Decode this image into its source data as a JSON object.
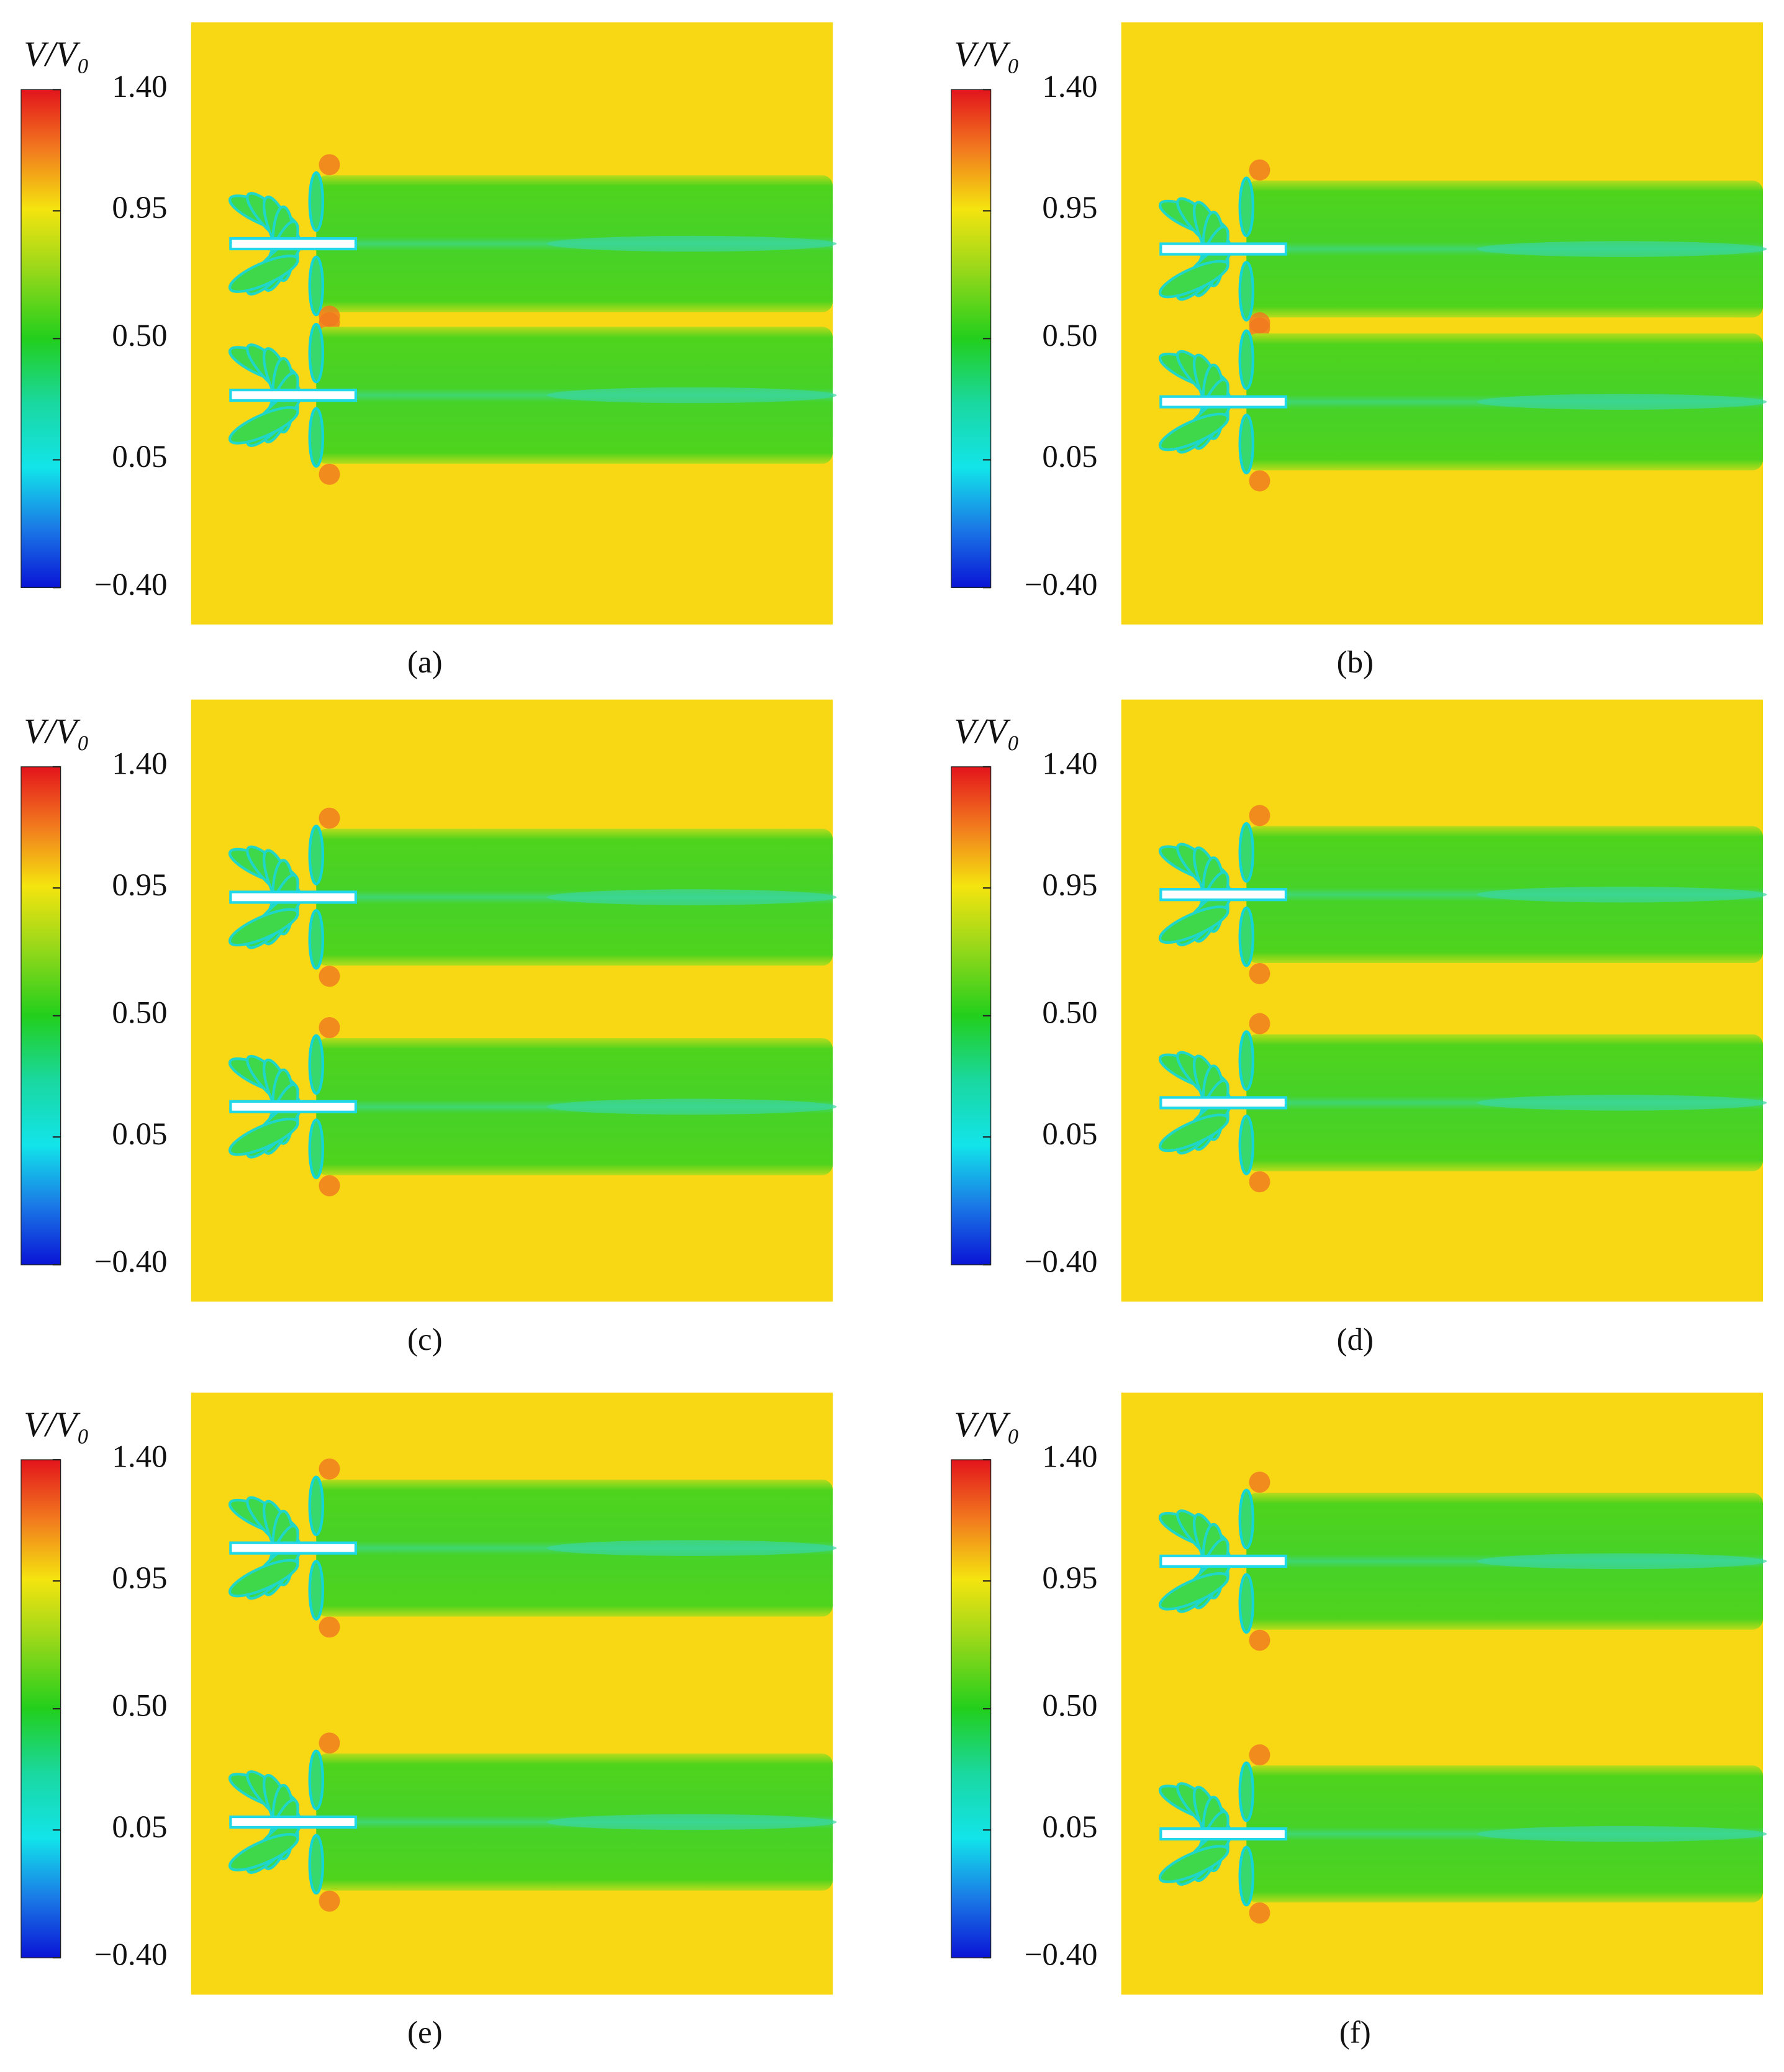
{
  "panels": [
    {
      "colorbar": {
        "title": "V/V₀",
        "ticks": [
          "1.40",
          "0.95",
          "0.50",
          "0.05",
          "−0.40"
        ]
      },
      "caption": "(a)"
    },
    {
      "colorbar": {
        "title": "V/V₀",
        "ticks": [
          "1.40",
          "0.95",
          "0.50",
          "0.05",
          "−0.40"
        ]
      },
      "caption": "(b)"
    },
    {
      "colorbar": {
        "title": "V/V₀",
        "ticks": [
          "1.40",
          "0.95",
          "0.50",
          "0.05",
          "−0.40"
        ]
      },
      "caption": "(c)"
    },
    {
      "colorbar": {
        "title": "V/V₀",
        "ticks": [
          "1.40",
          "0.95",
          "0.50",
          "0.05",
          "−0.40"
        ]
      },
      "caption": "(d)"
    },
    {
      "colorbar": {
        "title": "V/V₀",
        "ticks": [
          "1.40",
          "0.95",
          "0.50",
          "0.05",
          "−0.40"
        ]
      },
      "caption": "(e)"
    },
    {
      "colorbar": {
        "title": "V/V₀",
        "ticks": [
          "1.40",
          "0.95",
          "0.50",
          "0.05",
          "−0.40"
        ]
      },
      "caption": "(f)"
    }
  ]
}
